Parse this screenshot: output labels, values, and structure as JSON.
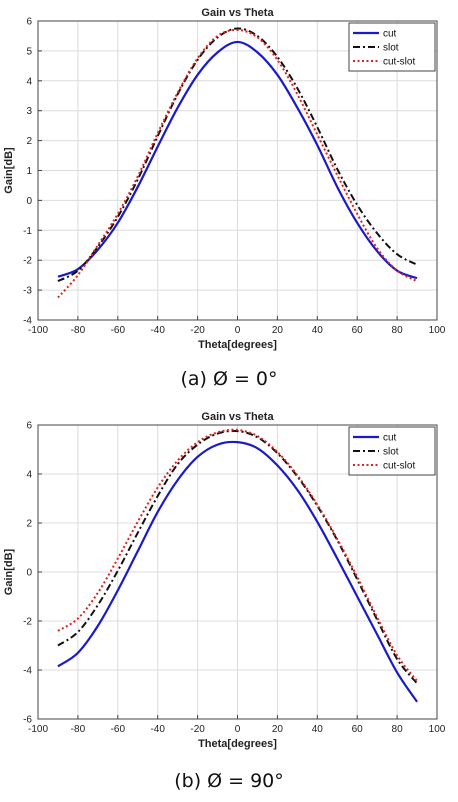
{
  "captions": [
    "(a) Ø = 0°",
    "(b) Ø = 90°"
  ],
  "chart_data": [
    {
      "type": "line",
      "title": "Gain vs Theta",
      "xlabel": "Theta[degrees]",
      "ylabel": "Gain[dB]",
      "xlim": [
        -100,
        100
      ],
      "ylim": [
        -4,
        6
      ],
      "xticks": [
        -100,
        -80,
        -60,
        -40,
        -20,
        0,
        20,
        40,
        60,
        80,
        100
      ],
      "yticks": [
        -4,
        -3,
        -2,
        -1,
        0,
        1,
        2,
        3,
        4,
        5,
        6
      ],
      "grid": true,
      "legend_position": "top-right",
      "x": [
        -90,
        -80,
        -70,
        -60,
        -50,
        -40,
        -30,
        -20,
        -10,
        0,
        10,
        20,
        30,
        40,
        50,
        60,
        70,
        80,
        90
      ],
      "series": [
        {
          "name": "cut",
          "color": "#1a1acc",
          "dash": "solid",
          "values": [
            -2.55,
            -2.3,
            -1.65,
            -0.75,
            0.45,
            1.8,
            3.1,
            4.2,
            4.95,
            5.3,
            4.95,
            4.2,
            3.1,
            1.85,
            0.45,
            -0.75,
            -1.7,
            -2.35,
            -2.6
          ]
        },
        {
          "name": "slot",
          "color": "#111111",
          "dash": "dashdot",
          "values": [
            -2.7,
            -2.35,
            -1.55,
            -0.55,
            0.7,
            2.15,
            3.55,
            4.7,
            5.45,
            5.75,
            5.5,
            4.8,
            3.75,
            2.45,
            1.05,
            -0.15,
            -1.1,
            -1.8,
            -2.15
          ]
        },
        {
          "name": "cut-slot",
          "color": "#e02020",
          "dash": "dotted",
          "values": [
            -3.25,
            -2.5,
            -1.5,
            -0.45,
            0.8,
            2.25,
            3.6,
            4.75,
            5.5,
            5.7,
            5.45,
            4.7,
            3.55,
            2.2,
            0.85,
            -0.45,
            -1.6,
            -2.35,
            -2.7
          ]
        }
      ]
    },
    {
      "type": "line",
      "title": "Gain vs Theta",
      "xlabel": "Theta[degrees]",
      "ylabel": "Gain[dB]",
      "xlim": [
        -100,
        100
      ],
      "ylim": [
        -6,
        6
      ],
      "xticks": [
        -100,
        -80,
        -60,
        -40,
        -20,
        0,
        20,
        40,
        60,
        80,
        100
      ],
      "yticks": [
        -6,
        -4,
        -2,
        0,
        2,
        4,
        6
      ],
      "grid": true,
      "legend_position": "top-right",
      "x": [
        -90,
        -80,
        -70,
        -60,
        -50,
        -40,
        -30,
        -20,
        -10,
        0,
        10,
        20,
        30,
        40,
        50,
        60,
        70,
        80,
        90
      ],
      "series": [
        {
          "name": "cut",
          "color": "#1a1acc",
          "dash": "solid",
          "values": [
            -3.85,
            -3.3,
            -2.2,
            -0.75,
            0.85,
            2.45,
            3.75,
            4.7,
            5.2,
            5.3,
            5.05,
            4.35,
            3.35,
            2.05,
            0.55,
            -1.0,
            -2.55,
            -4.1,
            -5.3
          ]
        },
        {
          "name": "slot",
          "color": "#111111",
          "dash": "dashdot",
          "values": [
            -3.0,
            -2.45,
            -1.35,
            0.05,
            1.6,
            3.1,
            4.4,
            5.2,
            5.65,
            5.75,
            5.5,
            4.85,
            3.9,
            2.7,
            1.3,
            -0.3,
            -1.95,
            -3.55,
            -4.55
          ]
        },
        {
          "name": "cut-slot",
          "color": "#e02020",
          "dash": "dotted",
          "values": [
            -2.4,
            -1.9,
            -0.85,
            0.55,
            2.05,
            3.45,
            4.55,
            5.3,
            5.7,
            5.8,
            5.55,
            4.9,
            3.95,
            2.75,
            1.35,
            -0.2,
            -1.85,
            -3.4,
            -4.45
          ]
        }
      ]
    }
  ]
}
